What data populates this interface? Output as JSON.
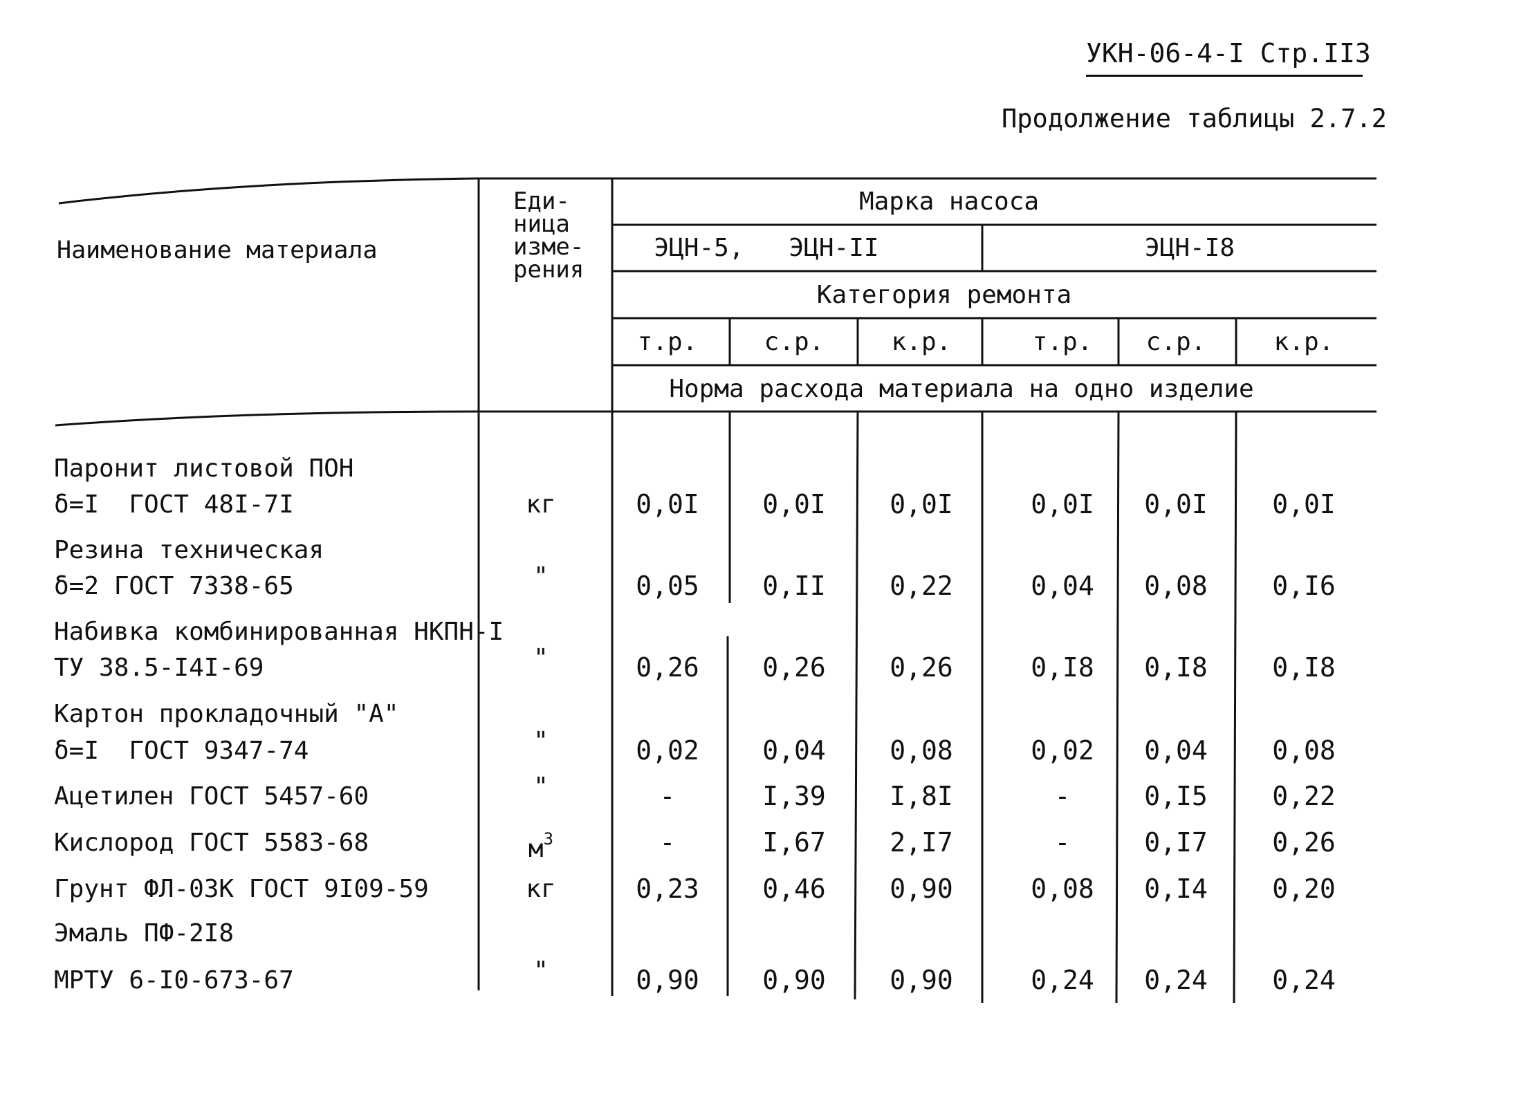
{
  "page": {
    "code": "УКН-06-4-I Стр.II3",
    "subtitle": "Продолжение таблицы 2.7.2"
  },
  "table": {
    "head": {
      "name": "Наименование материала",
      "unit_lines": [
        "Еди-",
        "ница",
        "изме-",
        "рения"
      ],
      "pump_brand": "Марка насоса",
      "group_a": "ЭЦН-5,   ЭЦН-II",
      "group_b": "ЭЦН-I8",
      "repair_category": "Категория ремонта",
      "cols": [
        "т.р.",
        "с.р.",
        "к.р.",
        "т.р.",
        "с.р.",
        "к.р."
      ],
      "norm": "Норма расхода материала на одно изделие"
    },
    "rows": [
      {
        "name": [
          "Паронит листовой ПОН",
          "δ=I  ГОСТ 48I-7I"
        ],
        "unit": "кг",
        "unit_sup": "",
        "values": [
          "0,0I",
          "0,0I",
          "0,0I",
          "0,0I",
          "0,0I",
          "0,0I"
        ]
      },
      {
        "name": [
          "Резина техническая",
          "δ=2 ГОСТ 7338-65"
        ],
        "unit": "\"",
        "unit_sup": "",
        "values": [
          "0,05",
          "0,II",
          "0,22",
          "0,04",
          "0,08",
          "0,I6"
        ]
      },
      {
        "name": [
          "Набивка комбинированная НКПН-I",
          "ТУ 38.5-I4I-69"
        ],
        "unit": "\"",
        "unit_sup": "",
        "values": [
          "0,26",
          "0,26",
          "0,26",
          "0,I8",
          "0,I8",
          "0,I8"
        ]
      },
      {
        "name": [
          "Картон прокладочный \"А\"",
          "δ=I  ГОСТ 9347-74"
        ],
        "unit": "\"",
        "unit_sup": "",
        "values": [
          "0,02",
          "0,04",
          "0,08",
          "0,02",
          "0,04",
          "0,08"
        ]
      },
      {
        "name": [
          "Ацетилен ГОСТ 5457-60"
        ],
        "unit": "\"",
        "unit_sup": "",
        "values": [
          "-",
          "I,39",
          "I,8I",
          "-",
          "0,I5",
          "0,22"
        ]
      },
      {
        "name": [
          "Кислород ГОСТ 5583-68"
        ],
        "unit": "м",
        "unit_sup": "3",
        "values": [
          "-",
          "I,67",
          "2,I7",
          "-",
          "0,I7",
          "0,26"
        ]
      },
      {
        "name": [
          "Грунт ФЛ-03К ГОСТ 9I09-59"
        ],
        "unit": "кг",
        "unit_sup": "",
        "values": [
          "0,23",
          "0,46",
          "0,90",
          "0,08",
          "0,I4",
          "0,20"
        ]
      },
      {
        "name": [
          "Эмаль ПФ-2I8",
          "МРТУ 6-I0-673-67"
        ],
        "unit": "\"",
        "unit_sup": "",
        "values": [
          "0,90",
          "0,90",
          "0,90",
          "0,24",
          "0,24",
          "0,24"
        ]
      }
    ]
  }
}
